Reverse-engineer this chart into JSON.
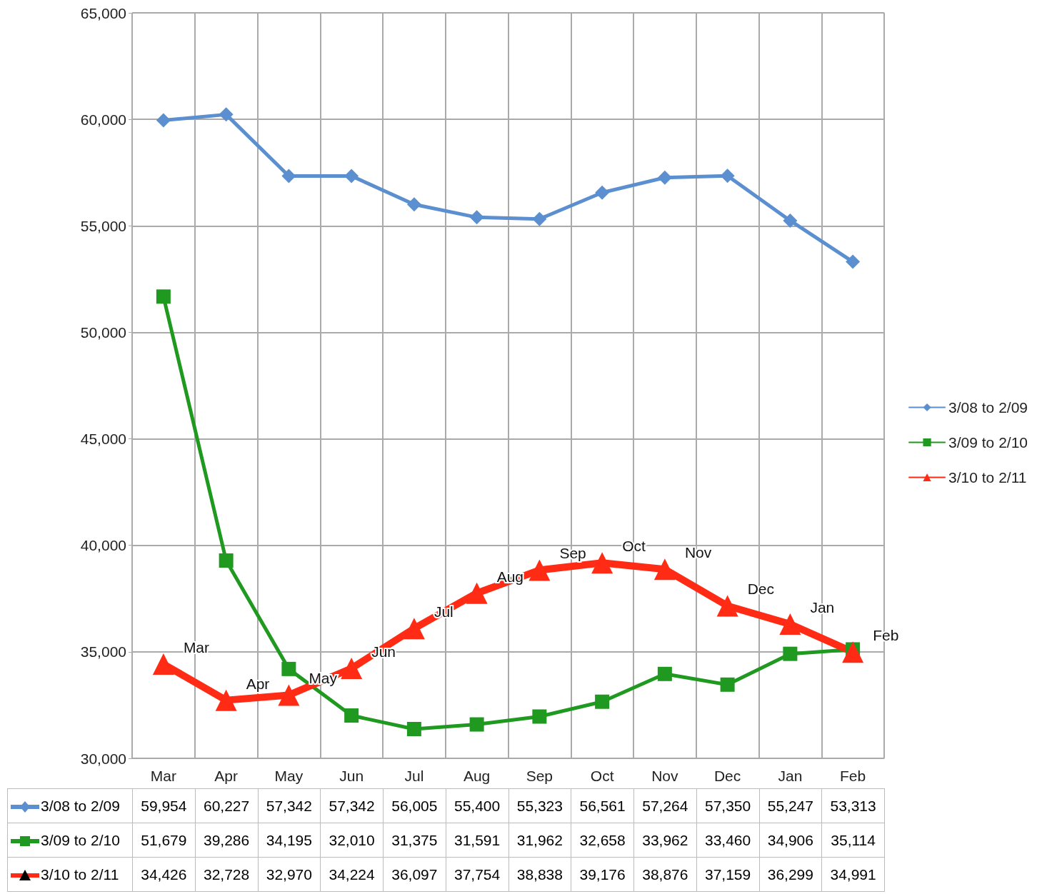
{
  "chart_data": {
    "type": "line",
    "categories": [
      "Mar",
      "Apr",
      "May",
      "Jun",
      "Jul",
      "Aug",
      "Sep",
      "Oct",
      "Nov",
      "Dec",
      "Jan",
      "Feb"
    ],
    "series": [
      {
        "name": "3/08 to 2/09",
        "color": "#5b8fcf",
        "marker": "diamond",
        "values": [
          59954,
          60227,
          57342,
          57342,
          56005,
          55400,
          55323,
          56561,
          57264,
          57350,
          55247,
          53313
        ],
        "value_labels": [
          "59,954",
          "60,227",
          "57,342",
          "57,342",
          "56,005",
          "55,400",
          "55,323",
          "56,561",
          "57,264",
          "57,350",
          "55,247",
          "53,313"
        ]
      },
      {
        "name": "3/09 to 2/10",
        "color": "#1f991f",
        "marker": "square",
        "values": [
          51679,
          39286,
          34195,
          32010,
          31375,
          31591,
          31962,
          32658,
          33962,
          33460,
          34906,
          35114
        ],
        "value_labels": [
          "51,679",
          "39,286",
          "34,195",
          "32,010",
          "31,375",
          "31,591",
          "31,962",
          "32,658",
          "33,962",
          "33,460",
          "34,906",
          "35,114"
        ]
      },
      {
        "name": "3/10 to 2/11",
        "color": "#ff2b14",
        "marker": "triangle",
        "values": [
          34426,
          32728,
          32970,
          34224,
          36097,
          37754,
          38838,
          39176,
          38876,
          37159,
          36299,
          34991
        ],
        "value_labels": [
          "34,426",
          "32,728",
          "32,970",
          "34,224",
          "36,097",
          "37,754",
          "38,838",
          "39,176",
          "38,876",
          "37,159",
          "36,299",
          "34,991"
        ]
      }
    ],
    "ylim": [
      30000,
      65000
    ],
    "yticks": [
      {
        "value": 30000,
        "label": "30,000"
      },
      {
        "value": 35000,
        "label": "35,000"
      },
      {
        "value": 40000,
        "label": "40,000"
      },
      {
        "value": 45000,
        "label": "45,000"
      },
      {
        "value": 50000,
        "label": "50,000"
      },
      {
        "value": 55000,
        "label": "55,000"
      },
      {
        "value": 60000,
        "label": "60,000"
      },
      {
        "value": 65000,
        "label": "65,000"
      }
    ],
    "grid": true,
    "legend": "right",
    "line_style": "solid",
    "annotations": [
      {
        "text": "Mar",
        "x": "Mar",
        "y": 34426
      },
      {
        "text": "Apr",
        "x": "Apr",
        "y": 32728
      },
      {
        "text": "May",
        "x": "May",
        "y": 32970
      },
      {
        "text": "Jun",
        "x": "Jun",
        "y": 34224
      },
      {
        "text": "Jul",
        "x": "Jul",
        "y": 36097
      },
      {
        "text": "Aug",
        "x": "Aug",
        "y": 37754
      },
      {
        "text": "Sep",
        "x": "Sep",
        "y": 38838
      },
      {
        "text": "Oct",
        "x": "Oct",
        "y": 39176
      },
      {
        "text": "Nov",
        "x": "Nov",
        "y": 38876
      },
      {
        "text": "Dec",
        "x": "Dec",
        "y": 37159
      },
      {
        "text": "Jan",
        "x": "Jan",
        "y": 36299
      },
      {
        "text": "Feb",
        "x": "Feb",
        "y": 34991
      }
    ]
  }
}
